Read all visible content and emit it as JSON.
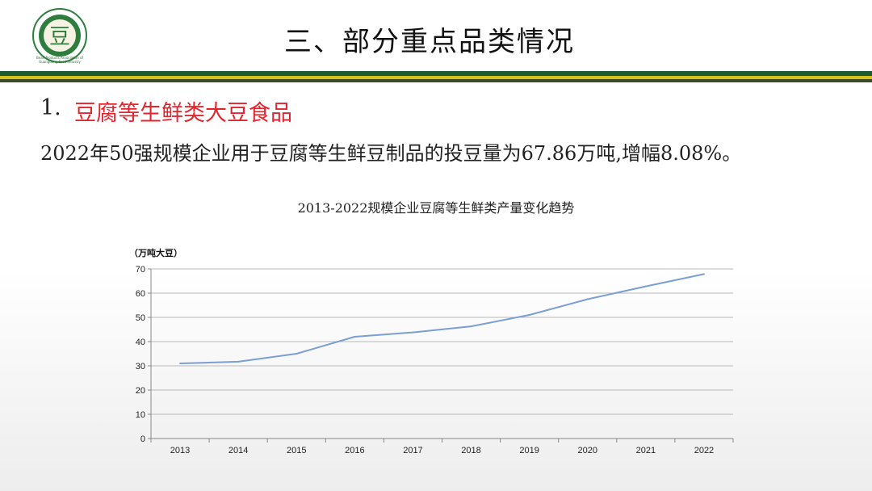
{
  "header": {
    "title": "三、部分重点品类情况",
    "logo_char": "豆",
    "logo_sub": "Bean Products Association of Guangdong Food Industry"
  },
  "section": {
    "number": "1.",
    "title": "豆腐等生鲜类大豆食品",
    "summary": "2022年50强规模企业用于豆腐等生鲜豆制品的投豆量为67.86万吨,增幅8.08%。"
  },
  "colors": {
    "accent_red": "#e3262d",
    "band_green": "#1f5a33",
    "band_yellow": "#d8c21a",
    "line": "#7b9fd3",
    "logo_green": "#2e7d3e"
  },
  "chart_data": {
    "type": "line",
    "title": "2013-2022规模企业豆腐等生鲜类产量变化趋势",
    "ylabel": "（万吨大豆）",
    "xlabel": "",
    "categories": [
      "2013",
      "2014",
      "2015",
      "2016",
      "2017",
      "2018",
      "2019",
      "2020",
      "2021",
      "2022"
    ],
    "series": [
      {
        "values": [
          31.0,
          31.7,
          35.0,
          42.0,
          43.8,
          46.3,
          51.0,
          57.5,
          62.8,
          67.86
        ]
      }
    ],
    "ylim": [
      0,
      70
    ],
    "yticks": [
      0,
      10,
      20,
      30,
      40,
      50,
      60,
      70
    ],
    "grid": true,
    "legend": "none"
  }
}
